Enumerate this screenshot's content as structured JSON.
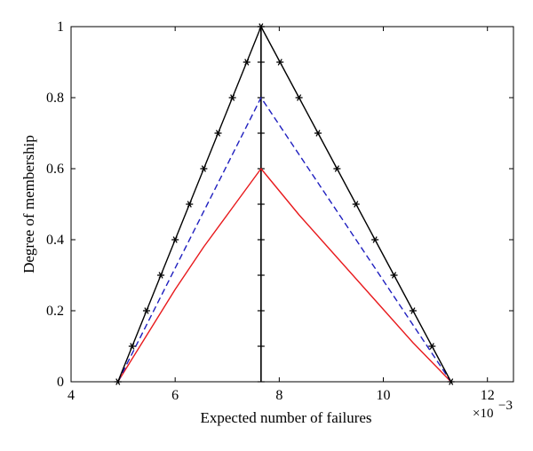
{
  "chart_data": {
    "type": "line",
    "title": "",
    "xlabel": "Expected number of failures",
    "ylabel": "Degree of membership",
    "x_scale_label": "×10",
    "x_scale_exponent": "−3",
    "xlim": [
      4,
      12.5
    ],
    "ylim": [
      0,
      1
    ],
    "xticks": [
      4,
      6,
      8,
      10,
      12
    ],
    "yticks": [
      0,
      0.2,
      0.4,
      0.6,
      0.8,
      1
    ],
    "xtick_labels": [
      "4",
      "6",
      "8",
      "10",
      "12"
    ],
    "ytick_labels": [
      "0",
      "0.2",
      "0.4",
      "0.6",
      "0.8",
      "1"
    ],
    "grid": false,
    "colors": {
      "black": "#000000",
      "blue": "#1f1fbf",
      "red": "#e8191c"
    },
    "vertical_line": {
      "x": 7.65,
      "tick_y": [
        0,
        0.1,
        0.2,
        0.3,
        0.4,
        0.5,
        0.6,
        0.7,
        0.8,
        0.9,
        1
      ]
    },
    "series": [
      {
        "color": "#000000",
        "style": "solid",
        "marker": "asterisk",
        "x": [
          4.9,
          5.175,
          5.45,
          5.725,
          6.0,
          6.275,
          6.55,
          6.825,
          7.1,
          7.375,
          7.65,
          8.015,
          8.38,
          8.745,
          9.11,
          9.475,
          9.84,
          10.205,
          10.57,
          10.935,
          11.3
        ],
        "y": [
          0,
          0.1,
          0.2,
          0.3,
          0.4,
          0.5,
          0.6,
          0.7,
          0.8,
          0.9,
          1,
          0.9,
          0.8,
          0.7,
          0.6,
          0.5,
          0.4,
          0.3,
          0.2,
          0.1,
          0
        ]
      },
      {
        "color": "#1f1fbf",
        "style": "dashed",
        "marker": "none",
        "x": [
          4.9,
          7.65,
          11.3
        ],
        "y": [
          0,
          0.8,
          0
        ]
      },
      {
        "color": "#e8191c",
        "style": "solid",
        "marker": "none",
        "x": [
          4.9,
          5.45,
          6.0,
          6.55,
          7.1,
          7.65,
          8.38,
          9.11,
          9.84,
          10.57,
          11.3
        ],
        "y": [
          0,
          0.13,
          0.26,
          0.38,
          0.49,
          0.6,
          0.47,
          0.35,
          0.23,
          0.11,
          0
        ]
      }
    ]
  }
}
